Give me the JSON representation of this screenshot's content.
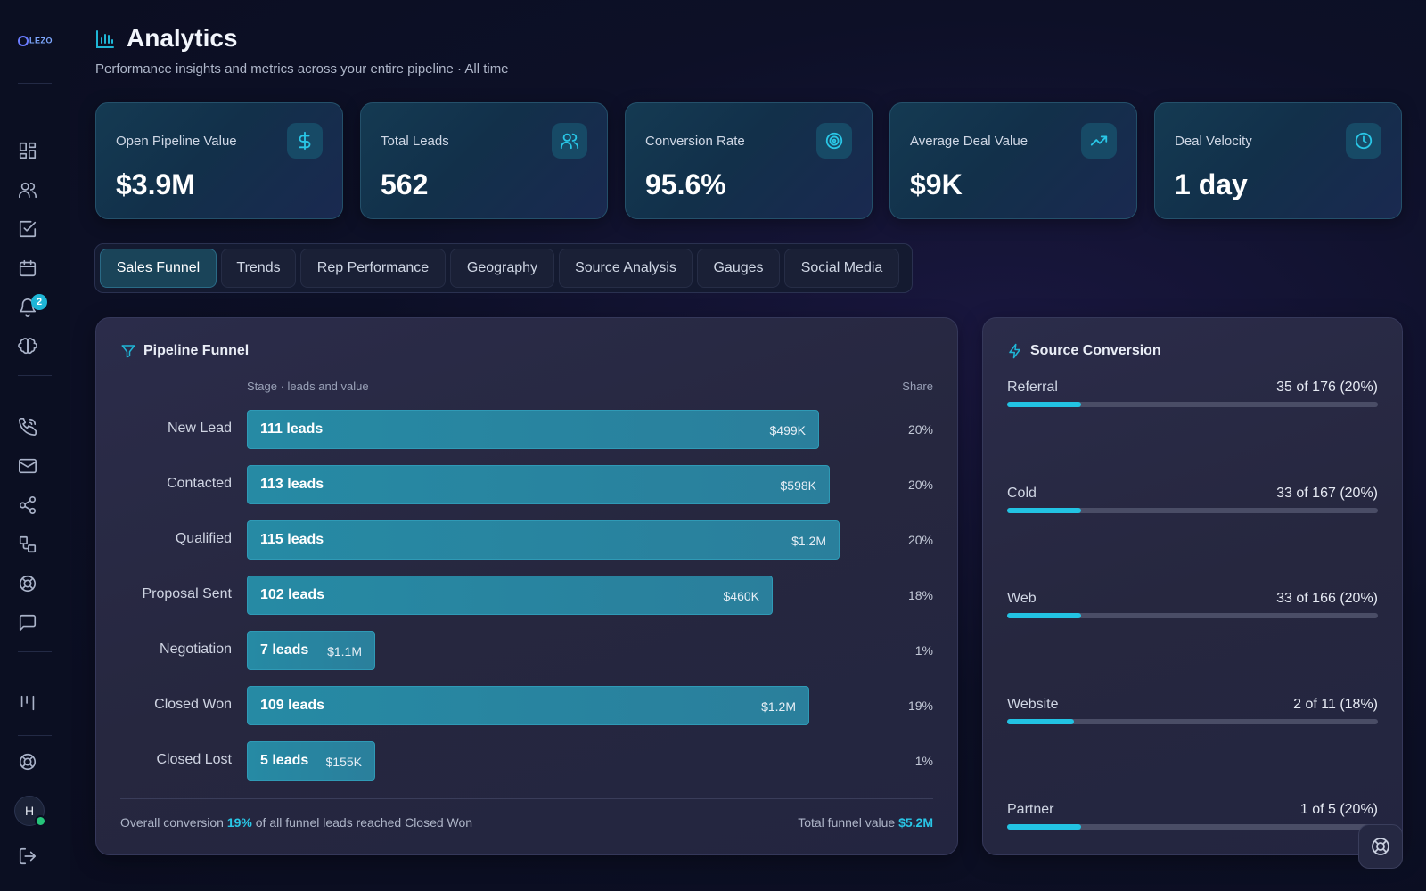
{
  "app": {
    "logo_text": "LEZO"
  },
  "sidebar": {
    "notification_count": "2",
    "user_initial": "H",
    "icons": [
      "dashboard-icon",
      "users-icon",
      "tasks-icon",
      "calendar-icon",
      "bell-icon",
      "brain-icon",
      "phone-icon",
      "mail-icon",
      "share-icon",
      "workflow-icon",
      "support-icon",
      "chat-icon",
      "columns-icon",
      "help-icon",
      "logout-icon"
    ]
  },
  "header": {
    "title": "Analytics",
    "subtitle": "Performance insights and metrics across your entire pipeline · All time"
  },
  "kpis": [
    {
      "label": "Open Pipeline Value",
      "value": "$3.9M",
      "icon": "dollar-icon"
    },
    {
      "label": "Total Leads",
      "value": "562",
      "icon": "users-icon"
    },
    {
      "label": "Conversion Rate",
      "value": "95.6%",
      "icon": "target-icon"
    },
    {
      "label": "Average Deal Value",
      "value": "$9K",
      "icon": "trending-up-icon"
    },
    {
      "label": "Deal Velocity",
      "value": "1 day",
      "icon": "clock-icon"
    }
  ],
  "tabs": [
    {
      "label": "Sales Funnel",
      "active": true
    },
    {
      "label": "Trends"
    },
    {
      "label": "Rep Performance"
    },
    {
      "label": "Geography"
    },
    {
      "label": "Source Analysis"
    },
    {
      "label": "Gauges"
    },
    {
      "label": "Social Media"
    }
  ],
  "funnel": {
    "title": "Pipeline Funnel",
    "col_stage": "Stage · leads and value",
    "col_share": "Share",
    "stages": [
      {
        "name": "New Lead",
        "leads": "111 leads",
        "value": "$499K",
        "share": "20%",
        "bar_fraction": 0.845
      },
      {
        "name": "Contacted",
        "leads": "113 leads",
        "value": "$598K",
        "share": "20%",
        "bar_fraction": 0.86
      },
      {
        "name": "Qualified",
        "leads": "115 leads",
        "value": "$1.2M",
        "share": "20%",
        "bar_fraction": 0.875
      },
      {
        "name": "Proposal Sent",
        "leads": "102 leads",
        "value": "$460K",
        "share": "18%",
        "bar_fraction": 0.776
      },
      {
        "name": "Negotiation",
        "leads": "7 leads",
        "value": "$1.1M",
        "share": "1%",
        "bar_fraction": 0.19
      },
      {
        "name": "Closed Won",
        "leads": "109 leads",
        "value": "$1.2M",
        "share": "19%",
        "bar_fraction": 0.83
      },
      {
        "name": "Closed Lost",
        "leads": "5 leads",
        "value": "$155K",
        "share": "1%",
        "bar_fraction": 0.19
      }
    ],
    "footer": {
      "left_prefix": "Overall conversion",
      "left_value": "19%",
      "left_suffix": "of all funnel leads reached Closed Won",
      "right_prefix": "Total funnel value",
      "right_value": "$5.2M"
    }
  },
  "source_conversion": {
    "title": "Source Conversion",
    "sources": [
      {
        "name": "Referral",
        "value": "35 of 176 (20%)",
        "fraction": 0.2
      },
      {
        "name": "Cold",
        "value": "33 of 167 (20%)",
        "fraction": 0.2
      },
      {
        "name": "Web",
        "value": "33 of 166 (20%)",
        "fraction": 0.2
      },
      {
        "name": "Website",
        "value": "2 of 11 (18%)",
        "fraction": 0.18
      },
      {
        "name": "Partner",
        "value": "1 of 5 (20%)",
        "fraction": 0.2
      }
    ]
  },
  "colors": {
    "accent": "#22c3e3",
    "bar": "#268aa4",
    "online": "#26c47a"
  }
}
